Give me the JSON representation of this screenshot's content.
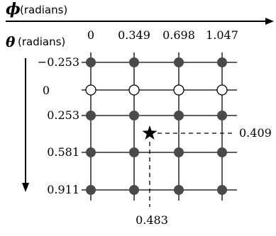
{
  "phi_axis": {
    "symbol": "ϕ",
    "unit": "(radians)"
  },
  "theta_axis": {
    "symbol": "θ",
    "unit": "(radians)"
  },
  "phi_ticks": [
    "0",
    "0.349",
    "0.698",
    "1.047"
  ],
  "theta_ticks": [
    "−0.253",
    "0",
    "0.253",
    "0.581",
    "0.911"
  ],
  "grid": {
    "rows": [
      {
        "theta": "−0.253",
        "points": [
          "filled",
          "filled",
          "filled",
          "filled"
        ]
      },
      {
        "theta": "0",
        "points": [
          "open",
          "open",
          "open",
          "open"
        ]
      },
      {
        "theta": "0.253",
        "points": [
          "filled",
          "filled",
          "filled",
          "filled"
        ]
      },
      {
        "theta": "0.581",
        "points": [
          "filled",
          "filled",
          "filled",
          "filled"
        ]
      },
      {
        "theta": "0.911",
        "points": [
          "filled",
          "filled",
          "filled",
          "filled"
        ]
      }
    ]
  },
  "target": {
    "marker": "star",
    "phi": 0.483,
    "theta": 0.409,
    "phi_label": "0.483",
    "theta_label": "0.409"
  },
  "colors": {
    "filled": "#4a4a4a",
    "line": "#000000"
  }
}
